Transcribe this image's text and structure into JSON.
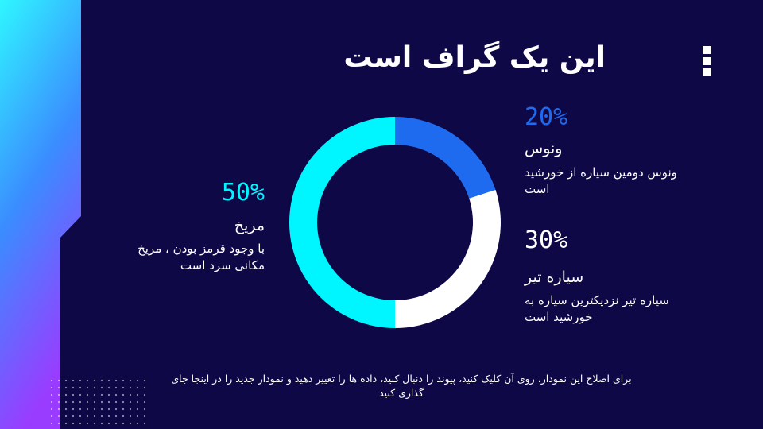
{
  "chart_data": {
    "type": "pie",
    "donut": true,
    "title": "این یک گراف است",
    "categories": [
      "ونوس",
      "سیاره تیر",
      "مریخ"
    ],
    "values": [
      20,
      30,
      50
    ],
    "value_labels": [
      "20%",
      "30%",
      "50%"
    ],
    "colors": [
      "#1f6bf0",
      "#ffffff",
      "#00f6ff"
    ],
    "descriptions": [
      "ونوس دومین سیاره از خورشید است",
      "سیاره تیر نزدیکترین سیاره به خورشید است",
      "با وجود قرمز بودن ، مریخ مکانی سرد است"
    ],
    "footnote": "برای اصلاح این نمودار، روی آن کلیک کنید، پیوند را دنبال کنید، داده ها را تغییر دهید و نمودار جدید را در اینجا جای گذاری کنید"
  }
}
